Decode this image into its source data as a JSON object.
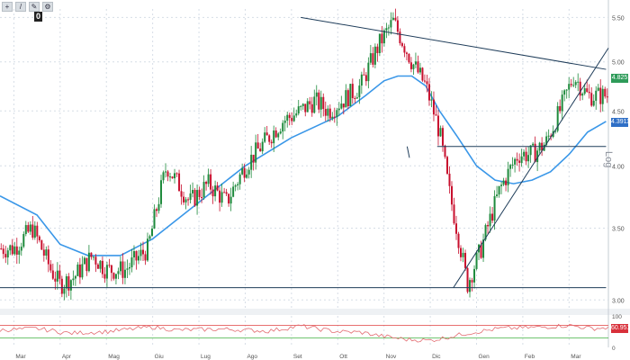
{
  "toolbar": {
    "icons": [
      "crosshair-icon",
      "draw-line-icon",
      "draw-pencil-icon",
      "settings-icon"
    ],
    "zero_badge": "0"
  },
  "axis_scale_label": "Log",
  "price_tags": [
    {
      "value": "4.825",
      "color": "#2e9b59"
    },
    {
      "value": "4.3911",
      "color": "#2f6fc6"
    }
  ],
  "rsi_tag": {
    "value": "60.9515",
    "color": "#d8303a"
  },
  "colors": {
    "candle_up": "#1e8a3c",
    "candle_down": "#c8102e",
    "moving_average": "#3a97e8",
    "trendline": "#1f3d5a",
    "rsi_line": "#e36b70",
    "rsi_upper": "#e04040",
    "rsi_lower": "#40b040",
    "grid": "#d6dde6"
  },
  "chart_data": [
    {
      "type": "candlestick",
      "title": "",
      "scale": "log",
      "ylim": [
        2.95,
        5.6
      ],
      "y_ticks": [
        "3.00",
        "3.50",
        "4.00",
        "4.50",
        "5.00",
        "5.50"
      ],
      "y_tick_values": [
        3.0,
        3.5,
        4.0,
        4.5,
        5.0,
        5.5
      ],
      "x_labels": [
        "Mar",
        "Apr",
        "Mag",
        "Giu",
        "Lug",
        "Ago",
        "Set",
        "Ott",
        "Nov",
        "Dic",
        "Gen",
        "Feb",
        "Mar"
      ],
      "close_anchors_months": [
        0,
        0.4,
        0.8,
        1.0,
        1.3,
        1.7,
        2.0,
        2.4,
        2.9,
        3.3,
        3.8,
        4.2,
        4.6,
        5.0,
        5.4,
        5.8,
        6.2,
        6.5,
        6.8,
        7.1,
        7.5,
        7.9,
        8.2,
        8.6,
        8.9,
        9.2,
        9.4,
        9.6,
        9.8,
        10.1,
        10.5,
        10.9,
        11.2,
        11.5,
        11.8,
        12.1,
        12.4
      ],
      "close_anchors_values": [
        3.35,
        3.5,
        3.2,
        3.1,
        3.15,
        3.3,
        3.2,
        3.2,
        3.35,
        4.0,
        3.7,
        3.85,
        3.7,
        4.0,
        4.2,
        4.4,
        4.5,
        4.6,
        4.5,
        4.6,
        4.75,
        5.2,
        5.45,
        5.0,
        4.75,
        4.3,
        3.8,
        3.45,
        3.1,
        3.35,
        3.8,
        4.1,
        4.1,
        4.2,
        4.5,
        4.85,
        4.65
      ],
      "moving_average_months": [
        -0.3,
        0.5,
        1.0,
        1.6,
        2.3,
        3.0,
        4.0,
        5.0,
        6.0,
        7.0,
        7.6,
        8.0,
        8.3,
        8.6,
        8.9,
        9.2,
        9.6,
        10.0,
        10.4,
        10.8,
        11.2,
        11.6,
        12.0,
        12.4,
        12.8
      ],
      "moving_average_values": [
        3.75,
        3.6,
        3.38,
        3.3,
        3.3,
        3.42,
        3.7,
        4.0,
        4.25,
        4.45,
        4.65,
        4.8,
        4.85,
        4.85,
        4.75,
        4.5,
        4.25,
        4.0,
        3.88,
        3.85,
        3.88,
        3.95,
        4.1,
        4.3,
        4.4
      ],
      "trendlines": [
        {
          "from": [
            6.2,
            5.5
          ],
          "to": [
            12.8,
            4.92
          ]
        },
        {
          "from": [
            9.5,
            3.08
          ],
          "to": [
            12.85,
            5.15
          ]
        },
        {
          "from": [
            9.15,
            4.17
          ],
          "to": [
            12.8,
            4.17
          ]
        },
        {
          "from": [
            -0.3,
            3.08
          ],
          "to": [
            12.8,
            3.08
          ]
        },
        {
          "from": [
            8.5,
            4.17
          ],
          "to": [
            8.55,
            4.07
          ]
        }
      ]
    },
    {
      "type": "line",
      "title": "",
      "ylim": [
        0,
        100
      ],
      "y_ticks": [
        "100",
        "0"
      ],
      "levels": [
        70,
        30
      ],
      "x_months": [
        -0.3,
        0.5,
        1.2,
        2.0,
        3.0,
        3.5,
        4.5,
        5.5,
        6.2,
        6.5,
        7.0,
        7.5,
        8.0,
        8.5,
        9.0,
        9.3,
        9.8,
        10.5,
        11.0,
        11.5,
        12.0,
        12.5,
        12.8
      ],
      "values": [
        55,
        60,
        45,
        50,
        65,
        55,
        58,
        52,
        68,
        60,
        50,
        48,
        35,
        25,
        22,
        30,
        45,
        60,
        62,
        65,
        70,
        60,
        62
      ]
    }
  ]
}
